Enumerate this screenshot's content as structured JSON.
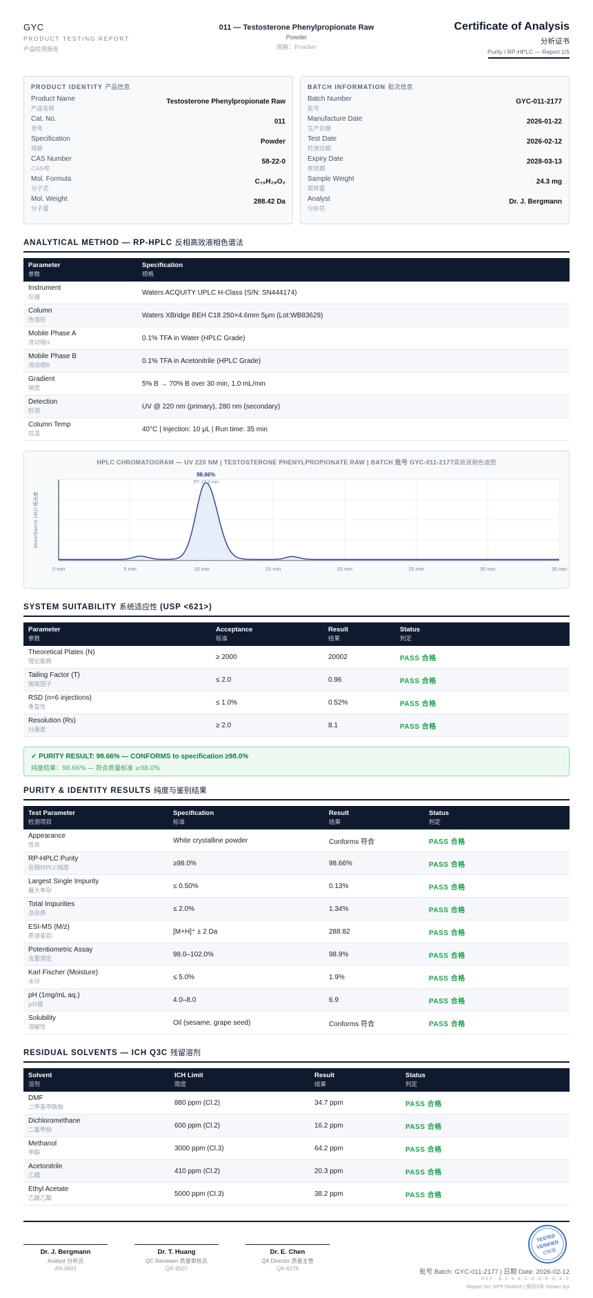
{
  "header": {
    "brand": "GYC",
    "brand_sub": "PRODUCT TESTING REPORT",
    "brand_zh": "产品检测报告",
    "product_title": "011 — Testosterone Phenylpropionate Raw",
    "product_form": "Powder",
    "product_form_zh": "规格：Powder",
    "doc_title": "Certificate of Analysis",
    "doc_title_zh": "分析证书",
    "doc_meta": "Purity / RP-HPLC — Report 1/5"
  },
  "identity": {
    "title": "PRODUCT IDENTITY",
    "title_zh": "产品信息",
    "rows": [
      {
        "k": "Product Name",
        "zh": "产品名称",
        "v": "Testosterone Phenylpropionate Raw"
      },
      {
        "k": "Cat. No.",
        "zh": "货号",
        "v": "011"
      },
      {
        "k": "Specification",
        "zh": "规格",
        "v": "Powder"
      },
      {
        "k": "CAS Number",
        "zh": "CAS号",
        "v": "58-22-0"
      },
      {
        "k": "Mol. Formula",
        "zh": "分子式",
        "v": "C₁₉H₂₈O₂"
      },
      {
        "k": "Mol. Weight",
        "zh": "分子量",
        "v": "288.42 Da"
      }
    ]
  },
  "batch": {
    "title": "BATCH INFORMATION",
    "title_zh": "批次信息",
    "rows": [
      {
        "k": "Batch Number",
        "zh": "批号",
        "v": "GYC-011-2177"
      },
      {
        "k": "Manufacture Date",
        "zh": "生产日期",
        "v": "2026-01-22"
      },
      {
        "k": "Test Date",
        "zh": "检测日期",
        "v": "2026-02-12"
      },
      {
        "k": "Expiry Date",
        "zh": "有效期",
        "v": "2028-03-13"
      },
      {
        "k": "Sample Weight",
        "zh": "取样量",
        "v": "24.3 mg"
      },
      {
        "k": "Analyst",
        "zh": "分析员",
        "v": "Dr. J. Bergmann"
      }
    ]
  },
  "method": {
    "title": "ANALYTICAL METHOD — RP-HPLC",
    "title_zh": "反相高效液相色谱法",
    "headers": [
      {
        "en": "Parameter",
        "zh": "参数"
      },
      {
        "en": "Specification",
        "zh": "规格"
      }
    ],
    "rows": [
      {
        "k": "Instrument",
        "zh": "仪器",
        "v": "Waters ACQUITY UPLC H-Class (S/N: SN444174)"
      },
      {
        "k": "Column",
        "zh": "色谱柱",
        "v": "Waters XBridge BEH C18 250×4.6mm 5μm (Lot:WB83629)"
      },
      {
        "k": "Mobile Phase A",
        "zh": "流动相A",
        "v": "0.1% TFA in Water (HPLC Grade)"
      },
      {
        "k": "Mobile Phase B",
        "zh": "流动相B",
        "v": "0.1% TFA in Acetonitrile (HPLC Grade)"
      },
      {
        "k": "Gradient",
        "zh": "梯度",
        "v": "5% B → 70% B over 30 min, 1.0 mL/min"
      },
      {
        "k": "Detection",
        "zh": "检测",
        "v": "UV @ 220 nm (primary), 280 nm (secondary)"
      },
      {
        "k": "Column Temp",
        "zh": "柱温",
        "v": "40°C | Injection: 10 μL | Run time: 35 min"
      }
    ]
  },
  "chart_data": {
    "type": "line",
    "title": "HPLC CHROMATOGRAM — UV 220 NM | TESTOSTERONE PHENYLPROPIONATE RAW | BATCH 批号 GYC-011-2177",
    "title_zh": "高效液相色谱图",
    "ylabel": "Absorbance (AU) 吸光度",
    "xlabel": "",
    "x_ticks": [
      "0 min",
      "5 min",
      "10 min",
      "15 min",
      "20 min",
      "25 min",
      "30 min",
      "35 min"
    ],
    "xlim": [
      0,
      35
    ],
    "ylim": [
      0,
      1
    ],
    "grid": true,
    "peaks": [
      {
        "rt": 5.7,
        "height": 0.04,
        "width": 0.5
      },
      {
        "rt": 10.3,
        "height": 0.95,
        "width": 0.75
      },
      {
        "rt": 16.3,
        "height": 0.035,
        "width": 0.45
      }
    ],
    "main_peak_label": "98.66%",
    "main_peak_rt_label": "RT: 10.3 min"
  },
  "suitability": {
    "title": "SYSTEM SUITABILITY",
    "title_zh": "系统适应性",
    "title_tail": "(USP <621>)",
    "headers": [
      {
        "en": "Parameter",
        "zh": "参数"
      },
      {
        "en": "Acceptance",
        "zh": "标准"
      },
      {
        "en": "Result",
        "zh": "结果"
      },
      {
        "en": "Status",
        "zh": "判定"
      }
    ],
    "rows": [
      {
        "k": "Theoretical Plates (N)",
        "zh": "理论板数",
        "a": "≥ 2000",
        "r": "20002",
        "s": "PASS 合格"
      },
      {
        "k": "Tailing Factor (T)",
        "zh": "拖尾因子",
        "a": "≤ 2.0",
        "r": "0.96",
        "s": "PASS 合格"
      },
      {
        "k": "RSD (n=6 injections)",
        "zh": "重复性",
        "a": "≤ 1.0%",
        "r": "0.52%",
        "s": "PASS 合格"
      },
      {
        "k": "Resolution (Rs)",
        "zh": "分离度",
        "a": "≥ 2.0",
        "r": "8.1",
        "s": "PASS 合格"
      }
    ]
  },
  "banner": {
    "line1": "✓ PURITY RESULT: 98.66% — CONFORMS to specification ≥98.0%",
    "line2": "纯度结果：98.66% — 符合质量标准 ≥98.0%"
  },
  "purity": {
    "title": "PURITY & IDENTITY RESULTS",
    "title_zh": "纯度与鉴别结果",
    "headers": [
      {
        "en": "Test Parameter",
        "zh": "检测项目"
      },
      {
        "en": "Specification",
        "zh": "标准"
      },
      {
        "en": "Result",
        "zh": "结果"
      },
      {
        "en": "Status",
        "zh": "判定"
      }
    ],
    "rows": [
      {
        "k": "Appearance",
        "zh": "性状",
        "a": "White crystalline powder",
        "r": "Conforms 符合",
        "s": "PASS 合格"
      },
      {
        "k": "RP-HPLC Purity",
        "zh": "反相HPLC纯度",
        "a": "≥98.0%",
        "r": "98.66%",
        "s": "PASS 合格"
      },
      {
        "k": "Largest Single Impurity",
        "zh": "最大单杂",
        "a": "≤ 0.50%",
        "r": "0.13%",
        "s": "PASS 合格"
      },
      {
        "k": "Total Impurities",
        "zh": "总杂质",
        "a": "≤ 2.0%",
        "r": "1.34%",
        "s": "PASS 合格"
      },
      {
        "k": "ESI-MS (M/z)",
        "zh": "质谱鉴别",
        "a": "[M+H]⁺ ± 2 Da",
        "r": "288.82",
        "s": "PASS 合格"
      },
      {
        "k": "Potentiometric Assay",
        "zh": "含量测定",
        "a": "98.0–102.0%",
        "r": "98.9%",
        "s": "PASS 合格"
      },
      {
        "k": "Karl Fischer (Moisture)",
        "zh": "水分",
        "a": "≤ 5.0%",
        "r": "1.9%",
        "s": "PASS 合格"
      },
      {
        "k": "pH (1mg/mL aq.)",
        "zh": "pH值",
        "a": "4.0–8.0",
        "r": "6.9",
        "s": "PASS 合格"
      },
      {
        "k": "Solubility",
        "zh": "溶解性",
        "a": "Oil (sesame, grape seed)",
        "r": "Conforms 符合",
        "s": "PASS 合格"
      }
    ]
  },
  "solvents": {
    "title": "RESIDUAL SOLVENTS — ICH Q3C",
    "title_zh": "残留溶剂",
    "headers": [
      {
        "en": "Solvent",
        "zh": "溶剂"
      },
      {
        "en": "ICH Limit",
        "zh": "限度"
      },
      {
        "en": "Result",
        "zh": "结果"
      },
      {
        "en": "Status",
        "zh": "判定"
      }
    ],
    "rows": [
      {
        "k": "DMF",
        "zh": "二甲基甲酰胺",
        "a": "880 ppm (Cl.2)",
        "r": "34.7 ppm",
        "s": "PASS 合格"
      },
      {
        "k": "Dichloromethane",
        "zh": "二氯甲烷",
        "a": "600 ppm (Cl.2)",
        "r": "16.2 ppm",
        "s": "PASS 合格"
      },
      {
        "k": "Methanol",
        "zh": "甲醇",
        "a": "3000 ppm (Cl.3)",
        "r": "64.2 ppm",
        "s": "PASS 合格"
      },
      {
        "k": "Acetonitrile",
        "zh": "乙腈",
        "a": "410 ppm (Cl.2)",
        "r": "20.3 ppm",
        "s": "PASS 合格"
      },
      {
        "k": "Ethyl Acetate",
        "zh": "乙酸乙酯",
        "a": "5000 ppm (Cl.3)",
        "r": "38.2 ppm",
        "s": "PASS 合格"
      }
    ]
  },
  "signatures": [
    {
      "name": "Dr. J. Bergmann",
      "role": "Analyst 分析员",
      "id": "AN-6803"
    },
    {
      "name": "Dr. T. Huang",
      "role": "QC Reviewer 质量审核员",
      "id": "QR-8507"
    },
    {
      "name": "Dr. E. Chen",
      "role": "QA Director 质量主管",
      "id": "QA-6276"
    }
  ],
  "stamp": {
    "line1": "TESTED",
    "line2": "VERIFIED",
    "line3": "已检验"
  },
  "footer": {
    "batch_date": "批号 Batch: GYC-011-2177 | 日期 Date: 2026-02-12",
    "ref": "REF: 8-5-9-8-C-K-8-R-Q-8-0",
    "report": "Report No: RPT-504003 | 保存5年 Retain 5yr"
  },
  "colors": {
    "navy": "#0f1a2e",
    "pass": "#17a34a",
    "chart_line": "#2a3f8f",
    "stamp": "#3b6fd1"
  }
}
